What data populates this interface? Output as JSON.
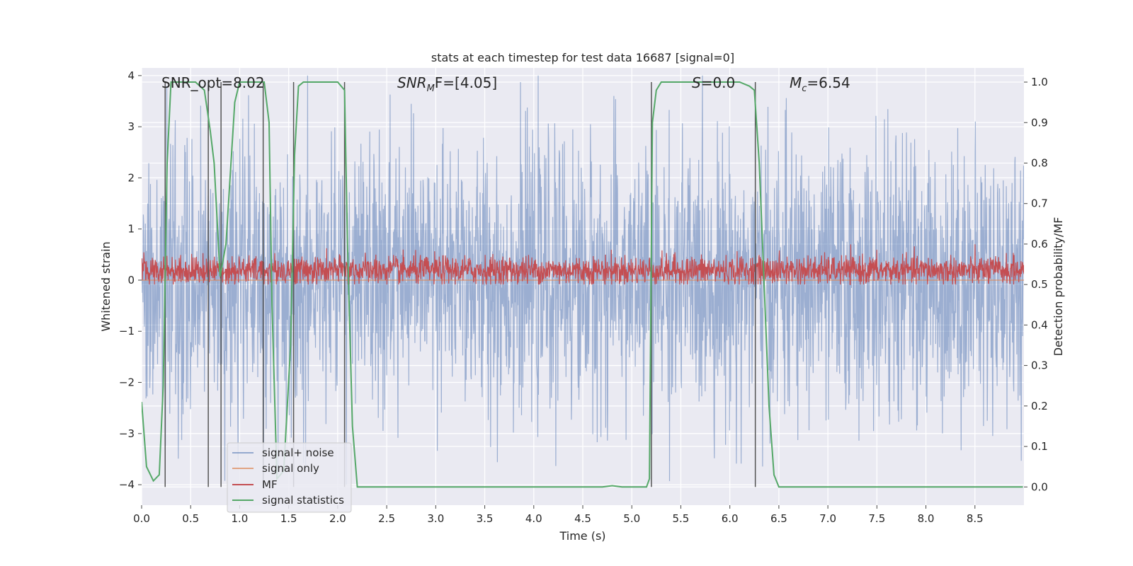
{
  "chart_data": {
    "type": "line",
    "title": "stats at each timestep for test data 16687 [signal=0]",
    "xlabel": "Time (s)",
    "ylabel_left": "Whitened strain",
    "ylabel_right": "Detection probability/MF",
    "xlim": [
      0.0,
      9.0
    ],
    "ylim_left": [
      -4.4,
      4.15
    ],
    "ylim_right": [
      -0.045,
      1.035
    ],
    "xticks": [
      "0.0",
      "0.5",
      "1.0",
      "1.5",
      "2.0",
      "2.5",
      "3.0",
      "3.5",
      "4.0",
      "4.5",
      "5.0",
      "5.5",
      "6.0",
      "6.5",
      "7.0",
      "7.5",
      "8.0",
      "8.5"
    ],
    "yticks_left": [
      "4",
      "3",
      "2",
      "1",
      "0",
      "−1",
      "−2",
      "−3",
      "−4"
    ],
    "yticks_left_values": [
      4,
      3,
      2,
      1,
      0,
      -1,
      -2,
      -3,
      -4
    ],
    "yticks_right": [
      "1.0",
      "0.9",
      "0.8",
      "0.7",
      "0.6",
      "0.5",
      "0.4",
      "0.3",
      "0.2",
      "0.1",
      "0.0"
    ],
    "yticks_right_values": [
      1.0,
      0.9,
      0.8,
      0.7,
      0.6,
      0.5,
      0.4,
      0.3,
      0.2,
      0.1,
      0.0
    ],
    "grid": true,
    "legend_position": "lower-left",
    "colors": {
      "background": "#eaeaf2",
      "grid": "#ffffff",
      "signal_noise": "#4c72b0",
      "signal_only": "#dd8452",
      "mf": "#c44e52",
      "signal_statistics": "#55a868",
      "vlines": "#555555"
    },
    "annotations": {
      "snr_opt": "SNR_opt=8.02",
      "snr_mf_pre": "SNR",
      "snr_mf_sub": "M",
      "snr_mf_post": "F=[4.05]",
      "s_pre": "S",
      "s_post": "=0.0",
      "mc_pre": "M",
      "mc_sub": "c",
      "mc_post": "=6.54"
    },
    "series": [
      {
        "name": "signal+ noise",
        "noise_amplitude_std": 1.3,
        "noise_range": [
          -4.0,
          4.0
        ]
      },
      {
        "name": "signal only",
        "values_constant": 0.0
      },
      {
        "name": "MF",
        "mean_right_axis": 0.535,
        "range_right_axis": [
          0.5,
          0.6
        ]
      },
      {
        "name": "signal statistics",
        "x": [
          0.0,
          0.05,
          0.12,
          0.18,
          0.22,
          0.26,
          0.3,
          0.35,
          0.55,
          0.64,
          0.7,
          0.74,
          0.8,
          0.86,
          0.95,
          1.0,
          1.15,
          1.25,
          1.3,
          1.33,
          1.38,
          1.45,
          1.52,
          1.56,
          1.6,
          1.65,
          1.7,
          2.0,
          2.07,
          2.1,
          2.15,
          2.2,
          2.3,
          3.0,
          4.0,
          4.7,
          4.8,
          4.9,
          5.15,
          5.18,
          5.21,
          5.25,
          5.3,
          5.4,
          6.1,
          6.2,
          6.25,
          6.3,
          6.4,
          6.45,
          6.5,
          6.55,
          7.0,
          8.0,
          8.99
        ],
        "values": [
          0.21,
          0.05,
          0.015,
          0.03,
          0.25,
          0.8,
          1.0,
          1.0,
          1.0,
          0.98,
          0.88,
          0.8,
          0.52,
          0.6,
          0.95,
          1.0,
          1.0,
          1.0,
          0.9,
          0.45,
          0.02,
          0.04,
          0.35,
          0.82,
          0.99,
          1.0,
          1.0,
          1.0,
          0.98,
          0.6,
          0.15,
          0.0,
          0.0,
          0.0,
          0.0,
          0.0,
          0.003,
          0.0,
          0.0,
          0.02,
          0.9,
          0.98,
          1.0,
          1.0,
          1.0,
          0.99,
          0.98,
          0.8,
          0.2,
          0.03,
          0.0,
          0.0,
          0.0,
          0.0,
          0.0
        ]
      }
    ],
    "vlines_x": [
      0.24,
      0.68,
      0.81,
      1.24,
      1.55,
      2.07,
      5.2,
      6.26
    ],
    "legend": [
      "signal+ noise",
      "signal only",
      "MF",
      "signal statistics"
    ]
  }
}
